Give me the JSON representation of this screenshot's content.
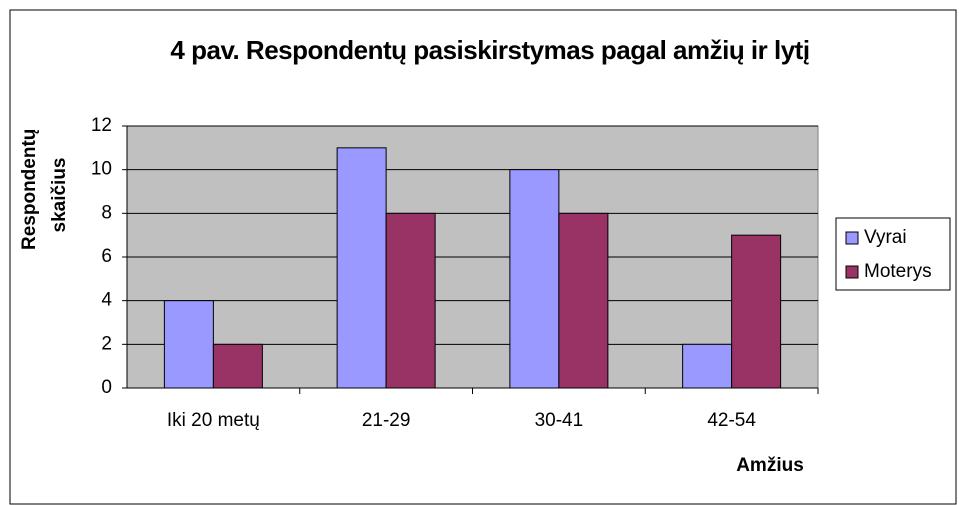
{
  "chart_data": {
    "type": "bar",
    "title": "4 pav. Respondentų pasiskirstymas pagal amžių ir lytį",
    "y_label": "Respondentų skaičius",
    "x_label": "Amžius",
    "categories": [
      "Iki 20 metų",
      "21-29",
      "30-41",
      "42-54"
    ],
    "series": [
      {
        "name": "Vyrai",
        "color": "#9999ff",
        "values": [
          4,
          11,
          10,
          2
        ]
      },
      {
        "name": "Moterys",
        "color": "#993366",
        "values": [
          2,
          8,
          8,
          7
        ]
      }
    ],
    "ylim": [
      0,
      12
    ],
    "yticks": [
      0,
      2,
      4,
      6,
      8,
      10,
      12
    ],
    "grid": true,
    "legend": "right"
  }
}
